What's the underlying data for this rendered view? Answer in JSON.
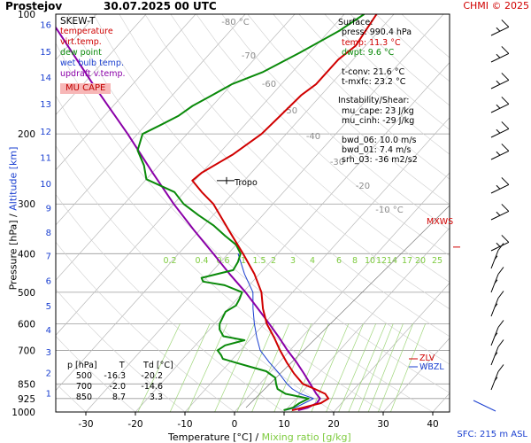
{
  "header": {
    "station": "Prostejov",
    "datetime": "30.07.2025 00 UTC",
    "credit": "CHMI © 2025"
  },
  "footer": {
    "sfc": "SFC: 215 m ASL"
  },
  "axes": {
    "xlabel_temp": "Temperature [°C]",
    "xlabel_sep": "/",
    "xlabel_mixing": "Mixing ratio [g/kg]",
    "ylabel_pressure": "Pressure [hPa]",
    "ylabel_sep": "/",
    "ylabel_altitude": "Altitude [km]"
  },
  "legend": {
    "title": "SKEW-T",
    "items": [
      {
        "label": "temperature",
        "color": "#d00000"
      },
      {
        "label": "virt.temp.",
        "color": "#d00000"
      },
      {
        "label": "dew point",
        "color": "#0a8a0a"
      },
      {
        "label": "wet bulb temp.",
        "color": "#1a3fd0"
      },
      {
        "label": "updraft v.temp.",
        "color": "#8a00a8"
      }
    ],
    "badge": "MU CAPE"
  },
  "info": {
    "surface_title": "Surface:",
    "press": "press: 990.4 hPa",
    "temp": "temp: 11.3 °C",
    "dwpt": "dwpt: 9.6 °C",
    "tconv": "t-conv: 21.6 °C",
    "tmxfc": "t-mxfc: 23.2 °C",
    "instab_title": "Instability/Shear:",
    "mu_cape": "mu_cape: 23 J/kg",
    "mu_cinh": "mu_cinh: -29 J/kg",
    "bwd_06": "bwd_06: 10.0 m/s",
    "bwd_01": "bwd_01: 7.4 m/s",
    "srh_03": "srh_03: -36 m2/s2"
  },
  "table": {
    "header": [
      "p [hPa]",
      "T",
      "Td [°C]"
    ],
    "rows": [
      [
        "500",
        "-16.3",
        "-20.2"
      ],
      [
        "700",
        "-2.0",
        "-14.6"
      ],
      [
        "850",
        "8.7",
        "3.3"
      ]
    ]
  },
  "labels": {
    "tropo": "Tropo",
    "mxws": "MXWS",
    "zlv": "ZLV",
    "wbzl": "WBZL"
  },
  "chart_data": {
    "type": "line",
    "title": "Prostejov 30.07.2025 00 UTC",
    "xlabel": "Temperature [°C] / Mixing ratio [g/kg]",
    "ylabel": "Pressure [hPa] / Altitude [km]",
    "xlim": [
      -35,
      45
    ],
    "ylim": [
      1000,
      100
    ],
    "log_pressure": true,
    "grid": true,
    "x_ticks": [
      -30,
      -20,
      -10,
      0,
      10,
      20,
      30,
      40
    ],
    "pressure_ticks": [
      100,
      200,
      300,
      400,
      500,
      600,
      700,
      850,
      925,
      1000
    ],
    "altitude_ticks": [
      {
        "km": 16,
        "p": 106
      },
      {
        "km": 15,
        "p": 124
      },
      {
        "km": 14,
        "p": 144
      },
      {
        "km": 13,
        "p": 168
      },
      {
        "km": 12,
        "p": 197
      },
      {
        "km": 11,
        "p": 229
      },
      {
        "km": 10,
        "p": 266
      },
      {
        "km": 9,
        "p": 307
      },
      {
        "km": 8,
        "p": 353
      },
      {
        "km": 7,
        "p": 405
      },
      {
        "km": 6,
        "p": 467
      },
      {
        "km": 5,
        "p": 540
      },
      {
        "km": 4,
        "p": 620
      },
      {
        "km": 3,
        "p": 705
      },
      {
        "km": 2,
        "p": 795
      },
      {
        "km": 1,
        "p": 895
      }
    ],
    "isotherm_labels": [
      {
        "t": -80,
        "label": "-80 °C"
      },
      {
        "t": -70,
        "label": "-70"
      },
      {
        "t": -60,
        "label": "-60"
      },
      {
        "t": -50,
        "label": "-50"
      },
      {
        "t": -40,
        "label": "-40"
      },
      {
        "t": -30,
        "label": "-30"
      },
      {
        "t": -20,
        "label": "-20"
      },
      {
        "t": -10,
        "label": "-10 °C"
      }
    ],
    "mixing_ratios": [
      "0.2",
      "0.4",
      "0.6",
      "1",
      "1.5",
      "2",
      "3",
      "4",
      "6",
      "8",
      "10",
      "12",
      "14",
      "17",
      "20",
      "25"
    ],
    "series": [
      {
        "name": "temperature",
        "color": "#d00000",
        "points": [
          [
            990,
            11.3
          ],
          [
            975,
            13
          ],
          [
            950,
            15.8
          ],
          [
            925,
            16.5
          ],
          [
            900,
            15
          ],
          [
            875,
            12
          ],
          [
            850,
            8.7
          ],
          [
            800,
            5
          ],
          [
            750,
            1.5
          ],
          [
            700,
            -2
          ],
          [
            650,
            -5.5
          ],
          [
            600,
            -9.5
          ],
          [
            550,
            -13
          ],
          [
            500,
            -16.3
          ],
          [
            450,
            -21
          ],
          [
            400,
            -27
          ],
          [
            350,
            -34
          ],
          [
            300,
            -42
          ],
          [
            280,
            -46.5
          ],
          [
            262,
            -50.5
          ],
          [
            250,
            -50
          ],
          [
            225,
            -47
          ],
          [
            200,
            -45
          ],
          [
            180,
            -44.5
          ],
          [
            160,
            -44
          ],
          [
            150,
            -43
          ],
          [
            130,
            -43
          ],
          [
            120,
            -42
          ],
          [
            100,
            -43.5
          ]
        ]
      },
      {
        "name": "dew point",
        "color": "#0a8a0a",
        "points": [
          [
            990,
            9.6
          ],
          [
            975,
            11
          ],
          [
            950,
            11.5
          ],
          [
            925,
            12.5
          ],
          [
            900,
            7
          ],
          [
            875,
            4.5
          ],
          [
            850,
            3.3
          ],
          [
            820,
            2
          ],
          [
            790,
            -1
          ],
          [
            770,
            -5
          ],
          [
            750,
            -9
          ],
          [
            735,
            -12
          ],
          [
            720,
            -13
          ],
          [
            700,
            -14.6
          ],
          [
            680,
            -14
          ],
          [
            660,
            -11
          ],
          [
            645,
            -16
          ],
          [
            620,
            -18
          ],
          [
            600,
            -19
          ],
          [
            580,
            -19.5
          ],
          [
            560,
            -20
          ],
          [
            540,
            -19
          ],
          [
            520,
            -19.5
          ],
          [
            500,
            -20.2
          ],
          [
            480,
            -25
          ],
          [
            470,
            -30
          ],
          [
            460,
            -31
          ],
          [
            440,
            -26
          ],
          [
            420,
            -26.5
          ],
          [
            400,
            -27.5
          ],
          [
            380,
            -30
          ],
          [
            360,
            -34
          ],
          [
            340,
            -38
          ],
          [
            320,
            -43
          ],
          [
            300,
            -48
          ],
          [
            280,
            -52
          ],
          [
            260,
            -60
          ],
          [
            240,
            -63
          ],
          [
            220,
            -67
          ],
          [
            200,
            -69
          ],
          [
            190,
            -67
          ],
          [
            180,
            -65
          ],
          [
            170,
            -64
          ],
          [
            160,
            -62
          ],
          [
            150,
            -60
          ],
          [
            140,
            -56
          ],
          [
            125,
            -52
          ],
          [
            110,
            -48
          ],
          [
            100,
            -46
          ]
        ]
      },
      {
        "name": "wet bulb temp.",
        "color": "#1a3fd0",
        "points": [
          [
            990,
            10
          ],
          [
            975,
            11.5
          ],
          [
            950,
            12.5
          ],
          [
            925,
            13.5
          ],
          [
            900,
            10
          ],
          [
            875,
            7.5
          ],
          [
            850,
            5.5
          ],
          [
            800,
            2
          ],
          [
            750,
            -2
          ],
          [
            700,
            -6
          ],
          [
            650,
            -9
          ],
          [
            600,
            -12
          ],
          [
            550,
            -15
          ],
          [
            500,
            -18
          ],
          [
            450,
            -23
          ],
          [
            400,
            -28
          ]
        ]
      },
      {
        "name": "updraft v.temp.",
        "color": "#8a00a8",
        "points": [
          [
            990,
            12.5
          ],
          [
            975,
            14
          ],
          [
            950,
            15
          ],
          [
            925,
            14.8
          ],
          [
            900,
            13.2
          ],
          [
            850,
            10.2
          ],
          [
            800,
            7
          ],
          [
            750,
            3.5
          ],
          [
            700,
            -0.5
          ],
          [
            650,
            -4.5
          ],
          [
            600,
            -9
          ],
          [
            550,
            -14
          ],
          [
            500,
            -19.5
          ],
          [
            450,
            -26
          ],
          [
            400,
            -33
          ],
          [
            350,
            -41
          ],
          [
            300,
            -50
          ],
          [
            250,
            -60
          ],
          [
            200,
            -72
          ],
          [
            150,
            -88
          ],
          [
            100,
            -110
          ]
        ]
      }
    ],
    "annotations": [
      "Tropo",
      "MXWS",
      "ZLV",
      "WBZL"
    ]
  }
}
